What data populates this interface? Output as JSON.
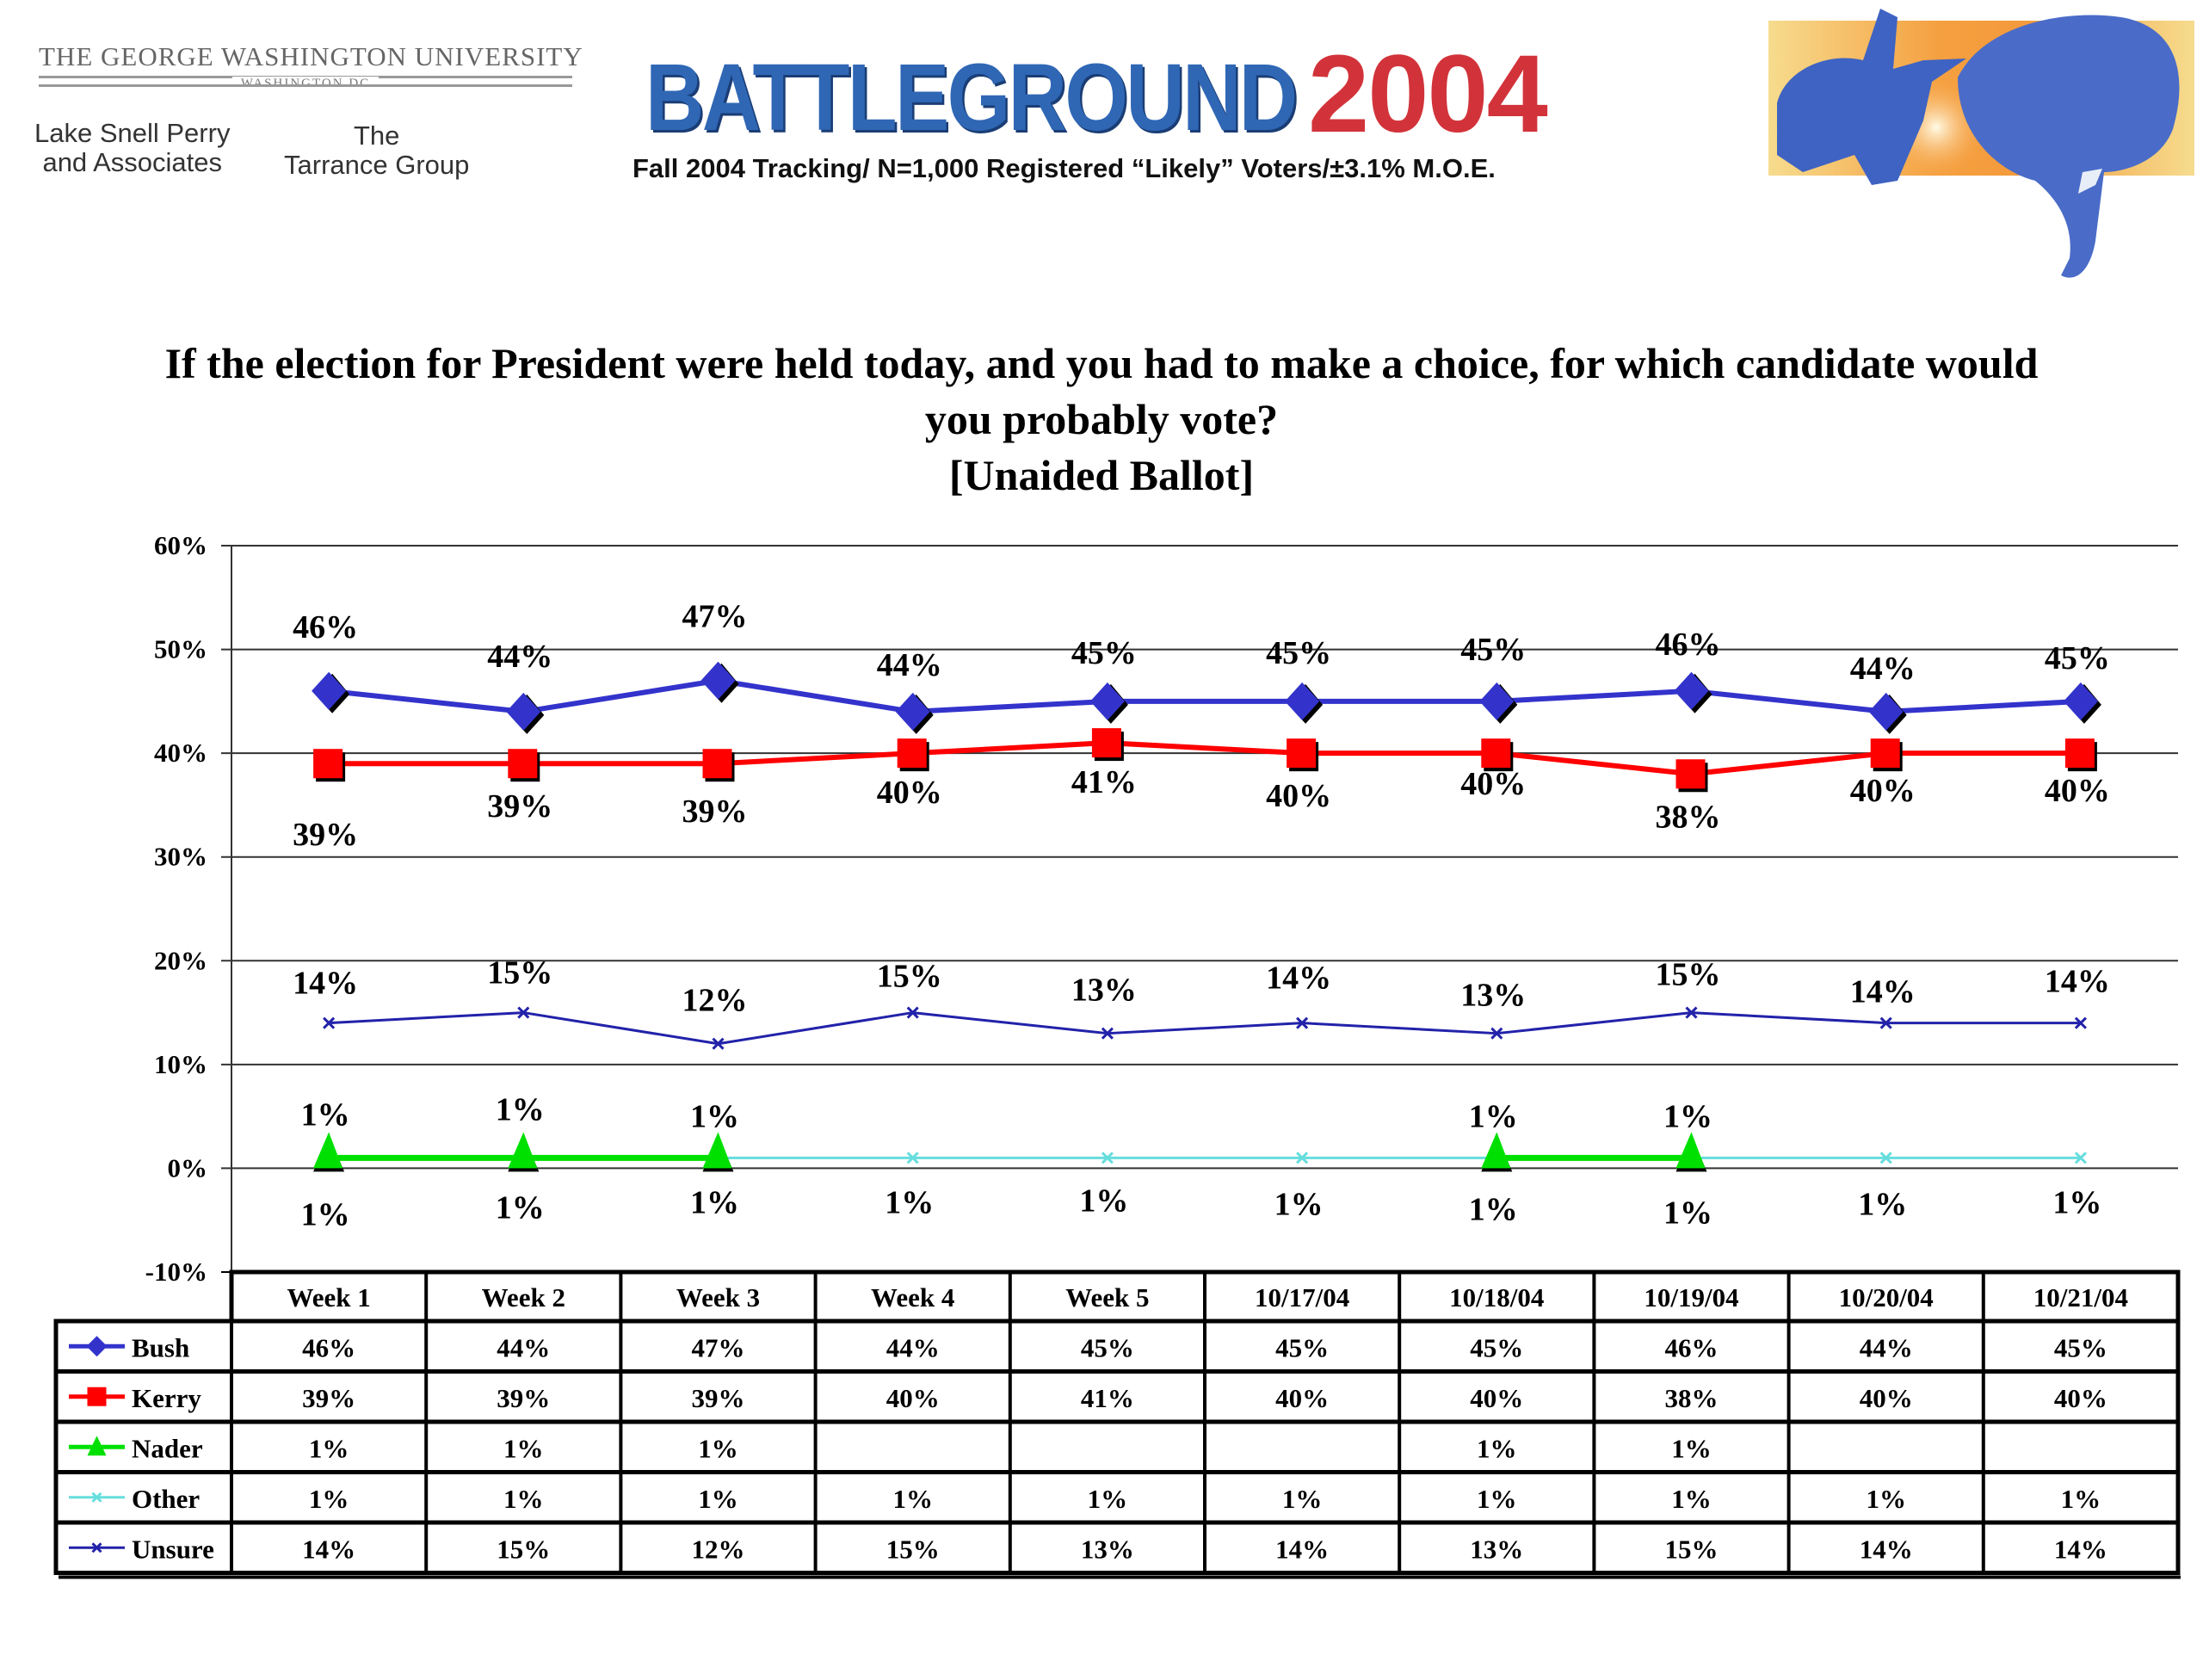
{
  "header": {
    "university": "THE GEORGE WASHINGTON UNIVERSITY",
    "university_sub": "WASHINGTON DC",
    "partner1_line1": "Lake Snell Perry",
    "partner1_line2": "and Associates",
    "partner2_line1": "The",
    "partner2_line2": "Tarrance Group",
    "brand_word": "BATTLEGROUND",
    "brand_year": "2004",
    "subtitle": "Fall 2004 Tracking/ N=1,000 Registered “Likely” Voters/±3.1% M.O.E.",
    "mascot": "donkey-and-elephant-illustration"
  },
  "question": {
    "line1": "If the election for President were held today, and you had to make a choice, for which candidate would",
    "line2": "you probably vote?",
    "line3": "[Unaided Ballot]"
  },
  "chart_data": {
    "type": "line",
    "title": "If the election for President were held today, and you had to make a choice, for which candidate would you probably vote? [Unaided Ballot]",
    "xlabel": "",
    "ylabel": "",
    "categories": [
      "Week 1",
      "Week 2",
      "Week 3",
      "Week 4",
      "Week 5",
      "10/17/04",
      "10/18/04",
      "10/19/04",
      "10/20/04",
      "10/21/04"
    ],
    "ylim": [
      -10,
      60
    ],
    "yticks": [
      60,
      50,
      40,
      30,
      20,
      10,
      0,
      -10
    ],
    "ytick_labels": [
      "60%",
      "50%",
      "40%",
      "30%",
      "20%",
      "10%",
      "0%",
      "-10%"
    ],
    "grid": true,
    "legend": "data-table-left",
    "series": [
      {
        "name": "Bush",
        "color": "#3333cc",
        "marker": "diamond",
        "values": [
          46,
          44,
          47,
          44,
          45,
          45,
          45,
          46,
          44,
          45
        ]
      },
      {
        "name": "Kerry",
        "color": "#ff0000",
        "marker": "square",
        "values": [
          39,
          39,
          39,
          40,
          41,
          40,
          40,
          38,
          40,
          40
        ]
      },
      {
        "name": "Nader",
        "color": "#00e000",
        "marker": "triangle",
        "values": [
          1,
          1,
          1,
          null,
          null,
          null,
          1,
          1,
          null,
          null
        ]
      },
      {
        "name": "Other",
        "color": "#66dddd",
        "marker": "x",
        "values": [
          1,
          1,
          1,
          1,
          1,
          1,
          1,
          1,
          1,
          1
        ]
      },
      {
        "name": "Unsure",
        "color": "#2222aa",
        "marker": "x",
        "values": [
          14,
          15,
          12,
          15,
          13,
          14,
          13,
          15,
          14,
          14
        ]
      }
    ],
    "value_suffix": "%"
  }
}
